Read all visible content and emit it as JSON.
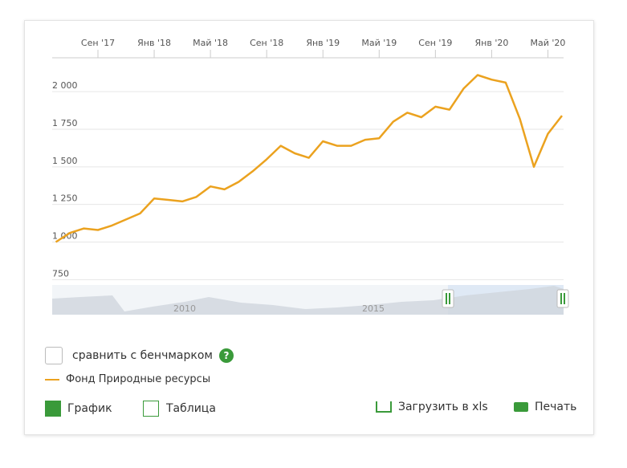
{
  "chart_data": {
    "type": "line",
    "x": [
      "2017-06",
      "2017-07",
      "2017-08",
      "2017-09",
      "2017-10",
      "2017-11",
      "2017-12",
      "2018-01",
      "2018-02",
      "2018-03",
      "2018-04",
      "2018-05",
      "2018-06",
      "2018-07",
      "2018-08",
      "2018-09",
      "2018-10",
      "2018-11",
      "2018-12",
      "2019-01",
      "2019-02",
      "2019-03",
      "2019-04",
      "2019-05",
      "2019-06",
      "2019-07",
      "2019-08",
      "2019-09",
      "2019-10",
      "2019-11",
      "2019-12",
      "2020-01",
      "2020-02",
      "2020-03",
      "2020-04",
      "2020-05",
      "2020-06"
    ],
    "series": [
      {
        "name": "Фонд Природные ресурсы",
        "color": "#eba21f",
        "values": [
          1000,
          1060,
          1090,
          1080,
          1110,
          1150,
          1190,
          1290,
          1280,
          1270,
          1300,
          1370,
          1350,
          1400,
          1470,
          1550,
          1640,
          1590,
          1560,
          1670,
          1640,
          1640,
          1680,
          1690,
          1800,
          1860,
          1830,
          1900,
          1880,
          2020,
          2110,
          2080,
          2060,
          1820,
          1500,
          1720,
          1840
        ]
      }
    ],
    "ylim": [
      725,
      2225
    ],
    "yticks": [
      750,
      {
        "value": 1000,
        "label": "1 000"
      },
      {
        "value": 1250,
        "label": "1 250"
      },
      {
        "value": 1500,
        "label": "1 500"
      },
      {
        "value": 1750,
        "label": "1 750"
      },
      {
        "value": 2000,
        "label": "2 000"
      }
    ],
    "xticks": [
      {
        "value": "2017-09",
        "label": "Сен '17"
      },
      {
        "value": "2018-01",
        "label": "Янв '18"
      },
      {
        "value": "2018-05",
        "label": "Май '18"
      },
      {
        "value": "2018-09",
        "label": "Сен '18"
      },
      {
        "value": "2019-01",
        "label": "Янв '19"
      },
      {
        "value": "2019-05",
        "label": "Май '19"
      },
      {
        "value": "2019-09",
        "label": "Сен '19"
      },
      {
        "value": "2020-01",
        "label": "Янв '20"
      },
      {
        "value": "2020-05",
        "label": "Май '20"
      }
    ],
    "grid": true,
    "navigator_labels": [
      "2010",
      "2015"
    ]
  },
  "ui": {
    "benchmark": "сравнить с бенчмарком",
    "chart_button": "График",
    "table_button": "Таблица",
    "download_button": "Загрузить в xls",
    "print_button": "Печать"
  }
}
